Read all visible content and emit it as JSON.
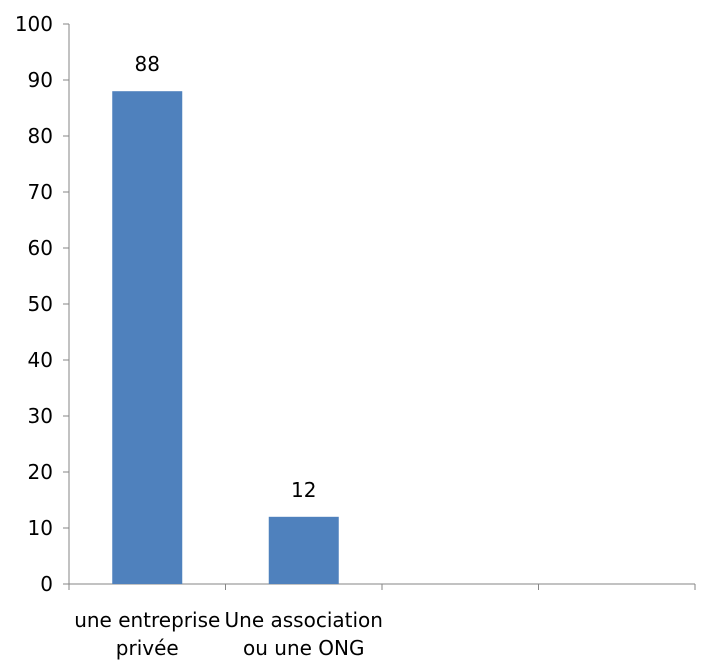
{
  "chart_data": {
    "type": "bar",
    "categories": [
      [
        "une entreprise",
        "privée"
      ],
      [
        "Une association",
        "ou une ONG"
      ],
      [],
      []
    ],
    "values": [
      88,
      12,
      null,
      null
    ],
    "data_labels": [
      "88",
      "12",
      "",
      ""
    ],
    "title": "",
    "xlabel": "",
    "ylabel": "",
    "ylim": [
      0,
      100
    ],
    "yticks": [
      0,
      10,
      20,
      30,
      40,
      50,
      60,
      70,
      80,
      90,
      100
    ],
    "grid": false,
    "legend": "none",
    "colors": {
      "bar": "#4F81BD",
      "axis": "#868686",
      "text": "#000000"
    }
  }
}
